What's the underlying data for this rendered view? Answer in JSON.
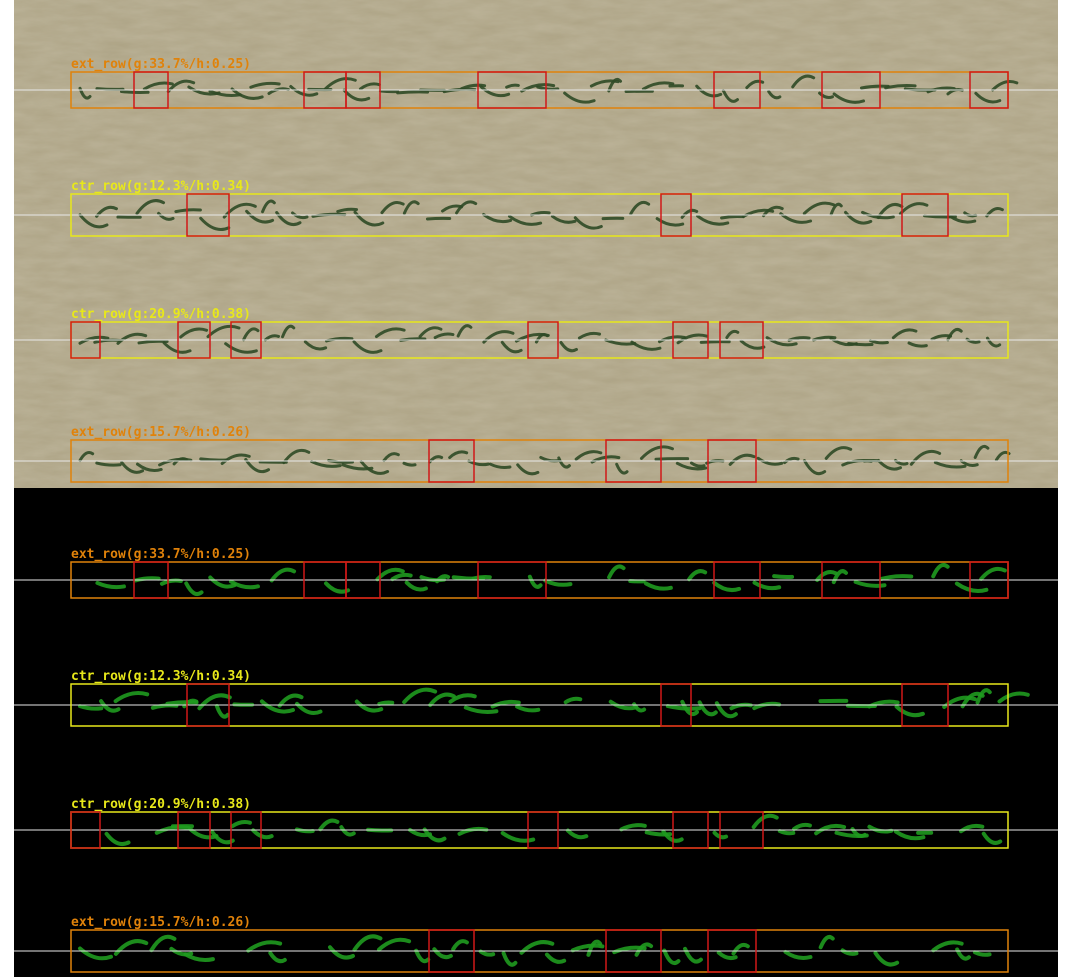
{
  "panels": [
    {
      "rows": [
        {
          "label": "ext_row(g:33.7%/h:0.25)"
        },
        {
          "label": "ctr_row(g:12.3%/h:0.34)"
        },
        {
          "label": "ctr_row(g:20.9%/h:0.38)"
        },
        {
          "label": "ext_row(g:15.7%/h:0.26)"
        }
      ]
    },
    {
      "rows": [
        {
          "label": "ext_row(g:33.7%/h:0.25)"
        },
        {
          "label": "ctr_row(g:12.3%/h:0.34)"
        },
        {
          "label": "ctr_row(g:20.9%/h:0.38)"
        },
        {
          "label": "ext_row(g:15.7%/h:0.26)"
        }
      ]
    }
  ]
}
